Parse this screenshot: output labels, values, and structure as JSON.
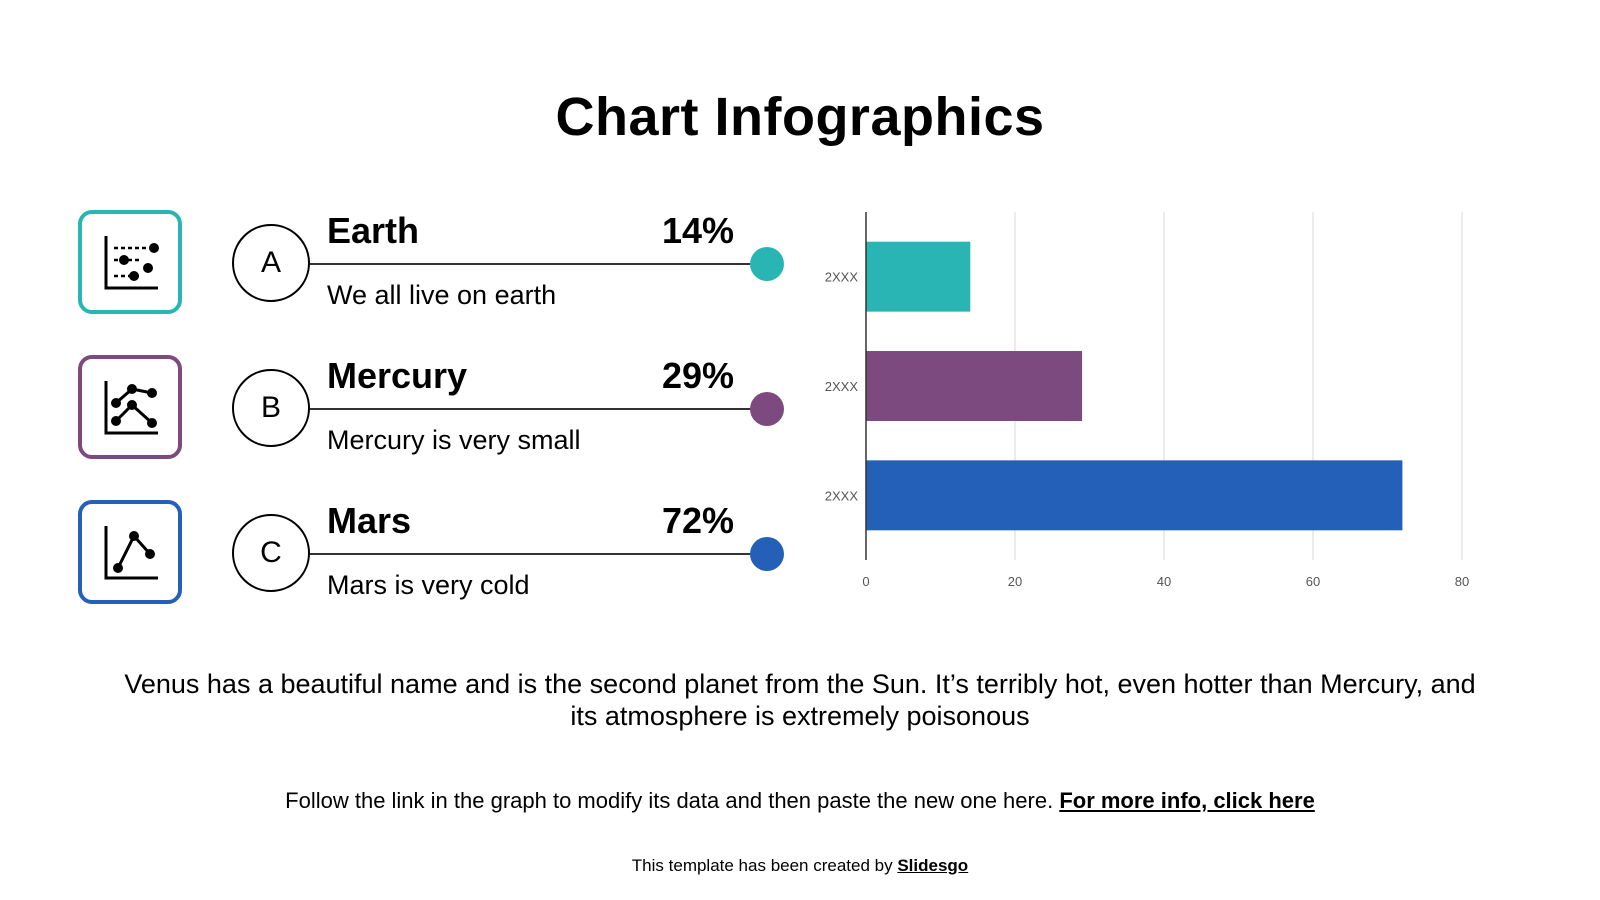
{
  "title": "Chart Infographics",
  "items": [
    {
      "letter": "A",
      "name": "Earth",
      "percent": "14%",
      "description": "We all live on earth",
      "color": "#2ab5b5",
      "icon": "filter-chart-icon"
    },
    {
      "letter": "B",
      "name": "Mercury",
      "percent": "29%",
      "description": "Mercury is very small",
      "color": "#7c4a7e",
      "icon": "multi-line-chart-icon"
    },
    {
      "letter": "C",
      "name": "Mars",
      "percent": "72%",
      "description": "Mars is very cold",
      "color": "#245fb8",
      "icon": "line-chart-icon"
    }
  ],
  "chart_data": {
    "type": "bar",
    "orientation": "horizontal",
    "categories": [
      "2XXX",
      "2XXX",
      "2XXX"
    ],
    "values": [
      14,
      29,
      72
    ],
    "colors": [
      "#2ab5b5",
      "#7c4a7e",
      "#245fb8"
    ],
    "xlim": [
      0,
      80
    ],
    "xticks": [
      0,
      20,
      40,
      60,
      80
    ],
    "grid": true
  },
  "body_text": "Venus has a beautiful name and is the second planet from the Sun. It’s terribly hot, even hotter than Mercury, and its atmosphere is extremely poisonous",
  "footer": {
    "follow_text": "Follow the link in the graph to modify its data and then paste the new one here. ",
    "link_text": "For more info, click here",
    "credit_text": "This template has been created by ",
    "credit_link": "Slidesgo"
  }
}
